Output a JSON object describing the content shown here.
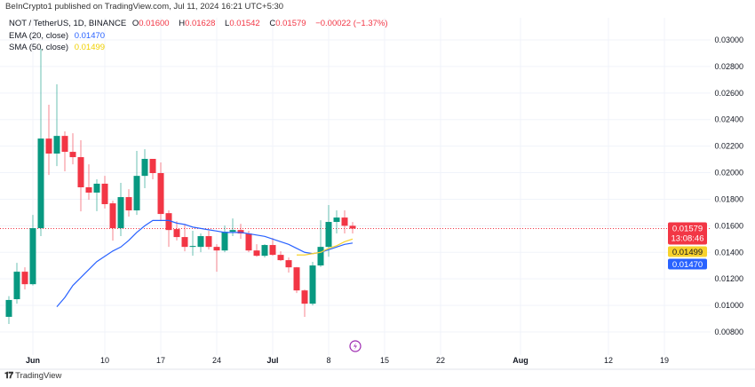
{
  "header": {
    "published": "BeInCrypto1 published on TradingView.com, Jul 11, 2024 16:21 UTC+5:30"
  },
  "legend": {
    "symbol": "NOT / TetherUS, 1D, BINANCE",
    "open_label": "O",
    "open": "0.01600",
    "high_label": "H",
    "high": "0.01628",
    "low_label": "L",
    "low": "0.01542",
    "close_label": "C",
    "close": "0.01579",
    "change": "−0.00022 (−1.37%)",
    "ema_label": "EMA (20, close)",
    "ema_value": "0.01470",
    "sma_label": "SMA (50, close)",
    "sma_value": "0.01499"
  },
  "price_tags": {
    "last": "0.01579",
    "countdown": "13:08:46",
    "sma": "0.01499",
    "ema": "0.01470"
  },
  "footer": {
    "brand": "TradingView"
  },
  "colors": {
    "up": "#089981",
    "down": "#f23645",
    "ema": "#2962ff",
    "sma": "#f7d22d",
    "lightning": "#9c27b0"
  },
  "chart_data": {
    "type": "candlestick",
    "title": "NOT / TetherUS, 1D, BINANCE",
    "ylim": [
      0.0073,
      0.0305
    ],
    "y_ticks": [
      "0.03000",
      "0.02800",
      "0.02600",
      "0.02400",
      "0.02200",
      "0.02000",
      "0.01800",
      "0.01600",
      "0.01400",
      "0.01200",
      "0.01000",
      "0.00800"
    ],
    "x_ticks": [
      {
        "date": "2024-06-01",
        "label": "Jun",
        "bold": true
      },
      {
        "date": "2024-06-10",
        "label": "10"
      },
      {
        "date": "2024-06-17",
        "label": "17"
      },
      {
        "date": "2024-06-24",
        "label": "24"
      },
      {
        "date": "2024-07-01",
        "label": "Jul",
        "bold": true
      },
      {
        "date": "2024-07-08",
        "label": "8"
      },
      {
        "date": "2024-07-15",
        "label": "15"
      },
      {
        "date": "2024-07-22",
        "label": "22"
      },
      {
        "date": "2024-08-01",
        "label": "Aug",
        "bold": true
      },
      {
        "date": "2024-08-12",
        "label": "12"
      },
      {
        "date": "2024-08-19",
        "label": "19"
      }
    ],
    "candles_columns": [
      "date",
      "open",
      "high",
      "low",
      "close"
    ],
    "candles": [
      [
        "2024-05-29",
        0.00914,
        0.0107,
        0.0086,
        0.01041
      ],
      [
        "2024-05-30",
        0.01047,
        0.01321,
        0.01013,
        0.01254
      ],
      [
        "2024-05-31",
        0.01254,
        0.01287,
        0.0112,
        0.0116
      ],
      [
        "2024-06-01",
        0.0116,
        0.01682,
        0.0115,
        0.01582
      ],
      [
        "2024-06-02",
        0.01582,
        0.02933,
        0.01522,
        0.02257
      ],
      [
        "2024-06-03",
        0.02257,
        0.02512,
        0.01983,
        0.02144
      ],
      [
        "2024-06-04",
        0.02144,
        0.02666,
        0.0205,
        0.02277
      ],
      [
        "2024-06-05",
        0.02277,
        0.02311,
        0.0201,
        0.02157
      ],
      [
        "2024-06-06",
        0.02157,
        0.02297,
        0.02063,
        0.02117
      ],
      [
        "2024-06-07",
        0.02117,
        0.02244,
        0.01709,
        0.0189
      ],
      [
        "2024-06-08",
        0.0189,
        0.02063,
        0.01796,
        0.0185
      ],
      [
        "2024-06-09",
        0.0185,
        0.0195,
        0.0171,
        0.01917
      ],
      [
        "2024-06-10",
        0.01917,
        0.01976,
        0.0173,
        0.01763
      ],
      [
        "2024-06-11",
        0.01769,
        0.01789,
        0.01488,
        0.01582
      ],
      [
        "2024-06-12",
        0.01582,
        0.01923,
        0.01522,
        0.01816
      ],
      [
        "2024-06-13",
        0.01816,
        0.01876,
        0.01669,
        0.01716
      ],
      [
        "2024-06-14",
        0.01716,
        0.02164,
        0.01682,
        0.01976
      ],
      [
        "2024-06-15",
        0.01976,
        0.02177,
        0.01883,
        0.02104
      ],
      [
        "2024-06-16",
        0.02104,
        0.02104,
        0.0195,
        0.01997
      ],
      [
        "2024-06-17",
        0.01997,
        0.02077,
        0.01635,
        0.01689
      ],
      [
        "2024-06-18",
        0.01695,
        0.01716,
        0.01441,
        0.01568
      ],
      [
        "2024-06-19",
        0.01575,
        0.01635,
        0.0149,
        0.01515
      ],
      [
        "2024-06-20",
        0.01515,
        0.01608,
        0.01408,
        0.01441
      ],
      [
        "2024-06-21",
        0.01441,
        0.01562,
        0.01374,
        0.01448
      ],
      [
        "2024-06-22",
        0.01441,
        0.01542,
        0.01401,
        0.01522
      ],
      [
        "2024-06-23",
        0.01522,
        0.01562,
        0.01421,
        0.01441
      ],
      [
        "2024-06-24",
        0.01441,
        0.01461,
        0.01254,
        0.01414
      ],
      [
        "2024-06-25",
        0.01414,
        0.01602,
        0.01401,
        0.01555
      ],
      [
        "2024-06-26",
        0.01555,
        0.01655,
        0.01522,
        0.01568
      ],
      [
        "2024-06-27",
        0.01568,
        0.01615,
        0.01501,
        0.01542
      ],
      [
        "2024-06-28",
        0.01542,
        0.01562,
        0.01401,
        0.01414
      ],
      [
        "2024-06-29",
        0.01414,
        0.01461,
        0.01367,
        0.01374
      ],
      [
        "2024-06-30",
        0.01374,
        0.01461,
        0.01361,
        0.01455
      ],
      [
        "2024-07-01",
        0.01455,
        0.01508,
        0.01374,
        0.01381
      ],
      [
        "2024-07-02",
        0.01381,
        0.01408,
        0.01334,
        0.01341
      ],
      [
        "2024-07-03",
        0.01341,
        0.01361,
        0.01247,
        0.01287
      ],
      [
        "2024-07-04",
        0.01287,
        0.0129,
        0.01093,
        0.01113
      ],
      [
        "2024-07-05",
        0.01113,
        0.0112,
        0.00914,
        0.01013
      ],
      [
        "2024-07-06",
        0.01013,
        0.01328,
        0.01,
        0.01301
      ],
      [
        "2024-07-07",
        0.01301,
        0.01642,
        0.0129,
        0.01441
      ],
      [
        "2024-07-08",
        0.01441,
        0.01756,
        0.01367,
        0.01629
      ],
      [
        "2024-07-09",
        0.01629,
        0.01716,
        0.01542,
        0.01662
      ],
      [
        "2024-07-10",
        0.01662,
        0.01716,
        0.01542,
        0.016
      ],
      [
        "2024-07-11",
        0.016,
        0.01628,
        0.01542,
        0.01579
      ]
    ],
    "series": [
      {
        "name": "EMA (20, close)",
        "start": "2024-06-04",
        "values": [
          0.0099,
          0.0106,
          0.0115,
          0.0121,
          0.0127,
          0.0133,
          0.0137,
          0.0141,
          0.0144,
          0.0149,
          0.0155,
          0.016,
          0.0164,
          0.0164,
          0.0164,
          0.0162,
          0.0161,
          0.0159,
          0.0158,
          0.0157,
          0.0156,
          0.0155,
          0.0155,
          0.0155,
          0.0154,
          0.0153,
          0.0152,
          0.015,
          0.0148,
          0.0146,
          0.0143,
          0.014,
          0.0139,
          0.014,
          0.0142,
          0.0144,
          0.0146,
          0.0147
        ]
      },
      {
        "name": "SMA (50, close)",
        "start": "2024-07-04",
        "values": [
          0.0138,
          0.0138,
          0.0139,
          0.014,
          0.0143,
          0.0145,
          0.0148,
          0.015
        ]
      }
    ],
    "grid": true,
    "legend_position": "top-left"
  }
}
